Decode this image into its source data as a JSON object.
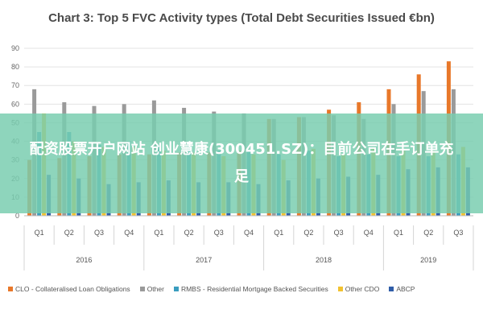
{
  "chart_data": {
    "type": "bar",
    "title": "Chart 3: Top 5 FVC Activity types (Total Debt Securities Issued €bn)",
    "xlabel": "",
    "ylabel": "",
    "ylim": [
      0,
      90
    ],
    "yticks": [
      0,
      10,
      20,
      30,
      40,
      50,
      60,
      70,
      80,
      90
    ],
    "grid": true,
    "legend_position": "bottom",
    "categories": [
      "Q1",
      "Q2",
      "Q3",
      "Q4",
      "Q1",
      "Q2",
      "Q3",
      "Q4",
      "Q1",
      "Q2",
      "Q3",
      "Q4",
      "Q1",
      "Q2",
      "Q3"
    ],
    "groups": [
      {
        "label": "2016",
        "span": 4
      },
      {
        "label": "2017",
        "span": 4
      },
      {
        "label": "2018",
        "span": 4
      },
      {
        "label": "2019",
        "span": 3
      }
    ],
    "series": [
      {
        "name": "CLO - Collateralised Loan Obligations",
        "color": "#e8782a",
        "values": [
          30,
          31,
          32,
          33,
          33,
          34,
          34,
          35,
          52,
          53,
          57,
          61,
          68,
          76,
          83
        ]
      },
      {
        "name": "Other",
        "color": "#9a9a9a",
        "values": [
          68,
          61,
          59,
          60,
          62,
          58,
          56,
          55,
          52,
          53,
          54,
          52,
          60,
          67,
          68
        ]
      },
      {
        "name": "RMBS - Residential Mortgage Backed Securities",
        "color": "#3a9dbf",
        "values": [
          45,
          45,
          38,
          40,
          38,
          38,
          35,
          35,
          33,
          35,
          32,
          33,
          32,
          32,
          33
        ]
      },
      {
        "name": "Other CDO",
        "color": "#f2c230",
        "values": [
          55,
          40,
          37,
          37,
          35,
          34,
          32,
          33,
          30,
          36,
          33,
          36,
          35,
          35,
          37
        ]
      },
      {
        "name": "ABCP",
        "color": "#2f5da8",
        "values": [
          22,
          20,
          17,
          18,
          19,
          18,
          18,
          17,
          19,
          20,
          21,
          22,
          25,
          26,
          26
        ]
      }
    ]
  },
  "overlay": {
    "text": "配资股票开户网站 创业慧康(300451.SZ)：目前公司在手订单充足"
  }
}
